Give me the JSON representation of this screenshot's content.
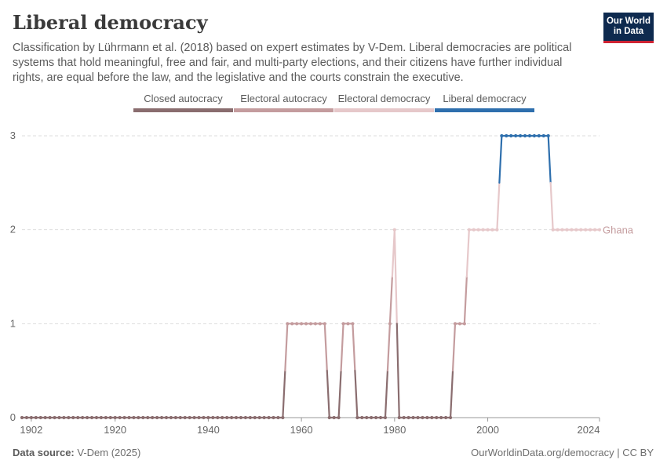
{
  "header": {
    "title": "Liberal democracy",
    "subtitle": "Classification by Lührmann et al. (2018) based on expert estimates by V-Dem. Liberal democracies are political systems that hold meaningful, free and fair, and multi-party elections, and their citizens have further individual rights, are equal before the law, and the legislative and the courts constrain the executive.",
    "logo_line1": "Our World",
    "logo_line2": "in Data"
  },
  "footer": {
    "source_label": "Data source:",
    "source_value": "V-Dem (2025)",
    "url": "OurWorldinData.org/democracy | CC BY"
  },
  "colors": {
    "closed_autocracy": "#8a6d6f",
    "electoral_autocracy": "#c49c9e",
    "electoral_democracy": "#e6c8ca",
    "liberal_democracy": "#2e6fad",
    "series_label": "#c49c9e",
    "grid": "#dddddd",
    "axis": "#999999"
  },
  "chart_data": {
    "type": "line",
    "title": "Liberal democracy",
    "xlabel": "",
    "ylabel": "",
    "xlim": [
      1900,
      2024
    ],
    "ylim": [
      0,
      3
    ],
    "x_ticks": [
      1902,
      1920,
      1940,
      1960,
      1980,
      2000,
      2024
    ],
    "y_ticks": [
      0,
      1,
      2,
      3
    ],
    "grid": "horizontal dashed",
    "legend": {
      "placement": "top",
      "entries": [
        "Closed autocracy",
        "Electoral autocracy",
        "Electoral democracy",
        "Liberal democracy"
      ]
    },
    "series": [
      {
        "name": "Ghana",
        "segments": [
          {
            "from": 1900,
            "to": 1956,
            "value": 0
          },
          {
            "from": 1957,
            "to": 1965,
            "value": 1
          },
          {
            "from": 1966,
            "to": 1968,
            "value": 0
          },
          {
            "from": 1969,
            "to": 1971,
            "value": 1
          },
          {
            "from": 1972,
            "to": 1978,
            "value": 0
          },
          {
            "from": 1979,
            "to": 1979,
            "value": 1
          },
          {
            "from": 1980,
            "to": 1980,
            "value": 2
          },
          {
            "from": 1981,
            "to": 1992,
            "value": 0
          },
          {
            "from": 1993,
            "to": 1995,
            "value": 1
          },
          {
            "from": 1996,
            "to": 2002,
            "value": 2
          },
          {
            "from": 2003,
            "to": 2013,
            "value": 3
          },
          {
            "from": 2014,
            "to": 2024,
            "value": 2
          }
        ]
      }
    ]
  }
}
